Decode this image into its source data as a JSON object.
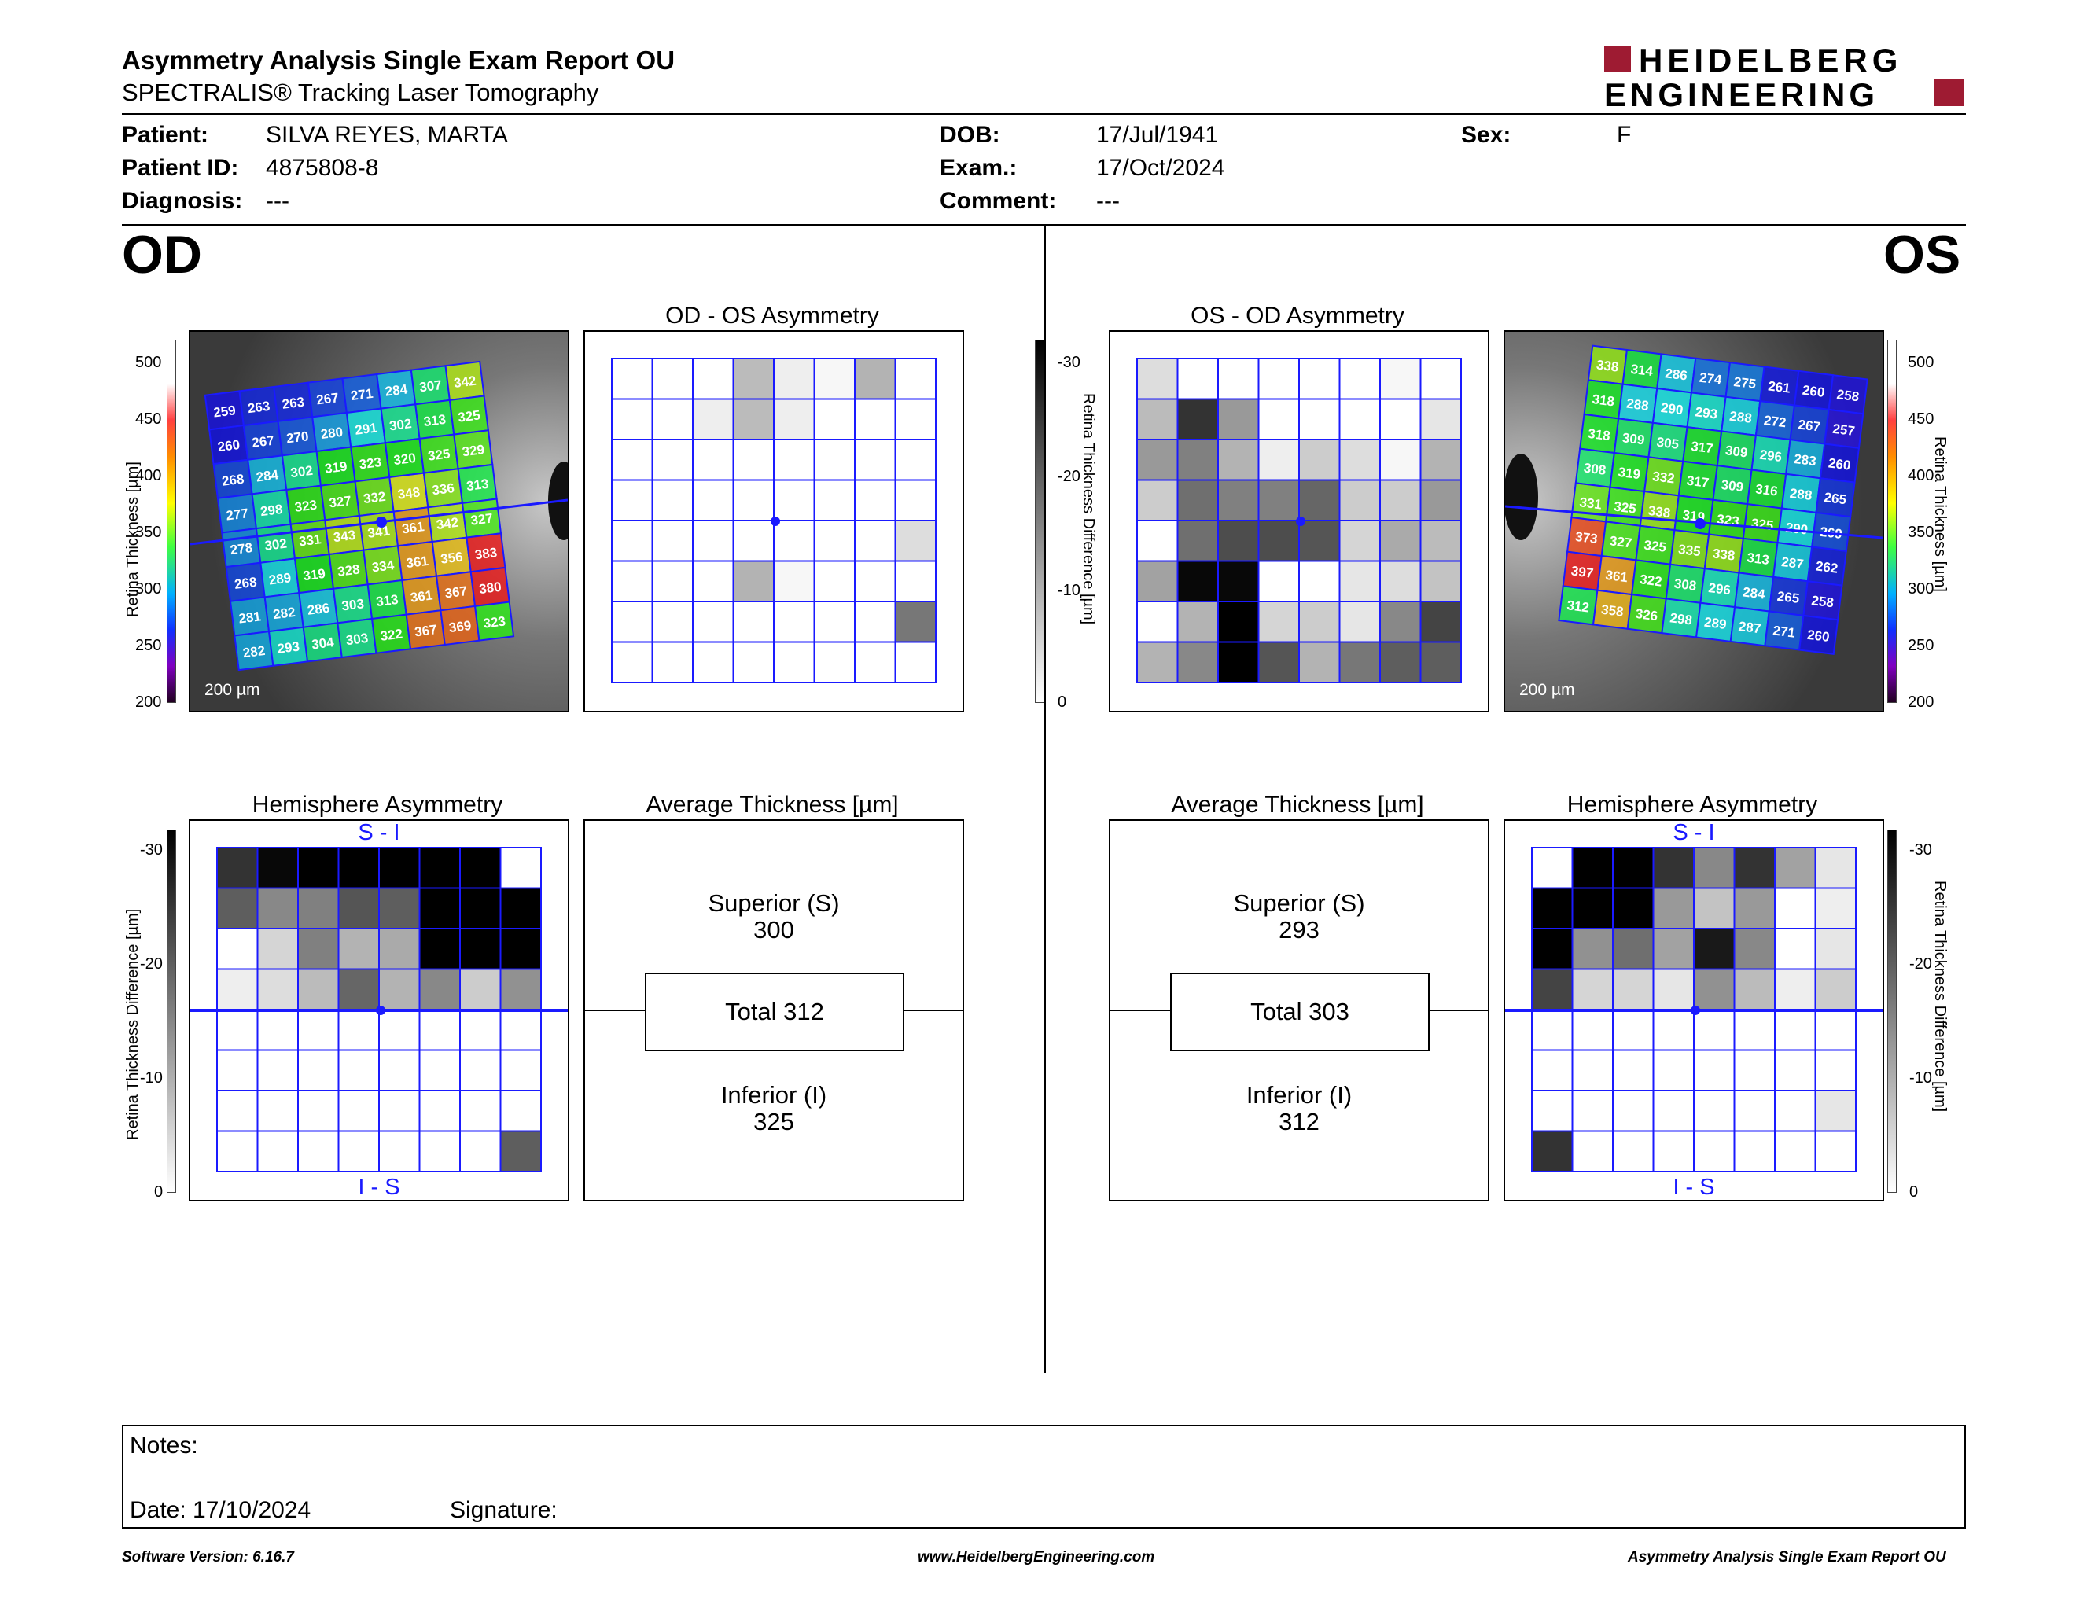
{
  "header": {
    "title": "Asymmetry Analysis Single Exam Report OU",
    "subtitle": "SPECTRALIS® Tracking Laser Tomography",
    "logo_line1": "HEIDELBERG",
    "logo_line2": "ENGINEERING",
    "brand_color": "#9e1b32"
  },
  "patient": {
    "patient_label": "Patient:",
    "patient_value": "SILVA REYES, MARTA",
    "id_label": "Patient ID:",
    "id_value": "4875808-8",
    "diagnosis_label": "Diagnosis:",
    "diagnosis_value": "---",
    "dob_label": "DOB:",
    "dob_value": "17/Jul/1941",
    "exam_label": "Exam.:",
    "exam_value": "17/Oct/2024",
    "comment_label": "Comment:",
    "comment_value": "---",
    "sex_label": "Sex:",
    "sex_value": "F"
  },
  "od": {
    "eye_label": "OD",
    "asym_title": "OD - OS Asymmetry",
    "hemi_title": "Hemisphere Asymmetry",
    "avg_title": "Average Thickness [µm]",
    "superior_label": "Superior (S)",
    "superior_value": "300",
    "total_label": "Total 312",
    "inferior_label": "Inferior (I)",
    "inferior_value": "325",
    "scale_bar": "200 µm",
    "hemi_top": "S - I",
    "hemi_bottom": "I - S",
    "thickness_grid": [
      [
        259,
        263,
        263,
        267,
        271,
        284,
        307,
        342
      ],
      [
        260,
        267,
        270,
        280,
        291,
        302,
        313,
        325
      ],
      [
        268,
        284,
        302,
        319,
        323,
        320,
        325,
        329
      ],
      [
        277,
        298,
        323,
        327,
        332,
        348,
        336,
        313
      ],
      [
        278,
        302,
        331,
        343,
        341,
        361,
        342,
        327
      ],
      [
        268,
        289,
        319,
        328,
        334,
        361,
        356,
        383
      ],
      [
        281,
        282,
        286,
        303,
        313,
        361,
        367,
        380
      ],
      [
        282,
        293,
        304,
        303,
        322,
        367,
        369,
        323
      ]
    ],
    "asym_grid": [
      [
        0,
        0,
        0,
        8,
        2,
        1,
        9,
        0
      ],
      [
        0,
        0,
        2,
        8,
        2,
        0,
        0,
        0
      ],
      [
        0,
        0,
        0,
        0,
        0,
        0,
        0,
        0
      ],
      [
        0,
        0,
        0,
        0,
        0,
        0,
        0,
        0
      ],
      [
        0,
        0,
        0,
        0,
        0,
        0,
        0,
        4
      ],
      [
        0,
        0,
        0,
        9,
        1,
        0,
        0,
        0
      ],
      [
        0,
        0,
        0,
        0,
        0,
        0,
        0,
        16
      ],
      [
        0,
        0,
        0,
        0,
        0,
        0,
        0,
        0
      ]
    ],
    "hemi_grid": [
      [
        24,
        29,
        30,
        30,
        30,
        30,
        30,
        0
      ],
      [
        19,
        14,
        15,
        20,
        19,
        30,
        30,
        30
      ],
      [
        0,
        5,
        15,
        9,
        10,
        30,
        30,
        30
      ],
      [
        2,
        4,
        8,
        18,
        9,
        14,
        6,
        13
      ],
      [
        0,
        0,
        0,
        0,
        0,
        0,
        0,
        0
      ],
      [
        0,
        0,
        0,
        0,
        0,
        0,
        0,
        0
      ],
      [
        0,
        0,
        0,
        0,
        0,
        0,
        0,
        0
      ],
      [
        0,
        0,
        0,
        0,
        0,
        0,
        0,
        19
      ]
    ]
  },
  "os": {
    "eye_label": "OS",
    "asym_title": "OS - OD Asymmetry",
    "hemi_title": "Hemisphere Asymmetry",
    "avg_title": "Average Thickness [µm]",
    "superior_label": "Superior (S)",
    "superior_value": "293",
    "total_label": "Total 303",
    "inferior_label": "Inferior (I)",
    "inferior_value": "312",
    "scale_bar": "200 µm",
    "hemi_top": "S - I",
    "hemi_bottom": "I - S",
    "thickness_grid": [
      [
        338,
        314,
        286,
        274,
        275,
        261,
        260,
        258
      ],
      [
        318,
        288,
        290,
        293,
        288,
        272,
        267,
        257
      ],
      [
        318,
        309,
        305,
        317,
        309,
        296,
        283,
        260
      ],
      [
        308,
        319,
        332,
        317,
        309,
        316,
        288,
        265
      ],
      [
        331,
        325,
        338,
        319,
        323,
        325,
        290,
        269
      ],
      [
        373,
        327,
        325,
        335,
        338,
        313,
        287,
        262
      ],
      [
        397,
        361,
        322,
        308,
        296,
        284,
        265,
        258
      ],
      [
        312,
        358,
        326,
        298,
        289,
        287,
        271,
        260
      ]
    ],
    "asym_grid": [
      [
        4,
        0,
        0,
        0,
        0,
        0,
        1,
        0
      ],
      [
        8,
        24,
        12,
        0,
        0,
        0,
        0,
        3
      ],
      [
        12,
        15,
        9,
        2,
        6,
        4,
        1,
        9
      ],
      [
        6,
        17,
        15,
        15,
        18,
        6,
        6,
        12
      ],
      [
        0,
        17,
        21,
        21,
        20,
        5,
        10,
        8
      ],
      [
        11,
        29,
        29,
        0,
        0,
        3,
        4,
        7
      ],
      [
        0,
        9,
        30,
        5,
        6,
        3,
        14,
        22
      ],
      [
        9,
        14,
        30,
        20,
        9,
        16,
        19,
        19
      ]
    ],
    "hemi_grid": [
      [
        0,
        30,
        30,
        24,
        14,
        24,
        11,
        3
      ],
      [
        30,
        30,
        30,
        12,
        7,
        12,
        0,
        2
      ],
      [
        30,
        13,
        17,
        11,
        27,
        14,
        0,
        3
      ],
      [
        22,
        5,
        5,
        3,
        13,
        8,
        2,
        6
      ],
      [
        0,
        0,
        0,
        0,
        0,
        0,
        0,
        0
      ],
      [
        0,
        0,
        0,
        0,
        0,
        0,
        0,
        0
      ],
      [
        0,
        0,
        0,
        0,
        0,
        0,
        0,
        3
      ],
      [
        24,
        0,
        0,
        0,
        0,
        0,
        0,
        0
      ]
    ]
  },
  "thickness_scale": {
    "ticks": [
      "500",
      "450",
      "400",
      "350",
      "300",
      "250",
      "200"
    ],
    "label": "Retina Thickness [µm]"
  },
  "difference_scale": {
    "ticks": [
      "-30",
      "-20",
      "-10",
      "0"
    ],
    "label": "Retina Thickness Difference [µm]"
  },
  "notes": {
    "notes_label": "Notes:",
    "date_label": "Date: 17/10/2024",
    "signature_label": "Signature:"
  },
  "footer": {
    "software": "Software Version: 6.16.7",
    "website": "www.HeidelbergEngineering.com",
    "report_name": "Asymmetry Analysis Single Exam Report OU"
  }
}
